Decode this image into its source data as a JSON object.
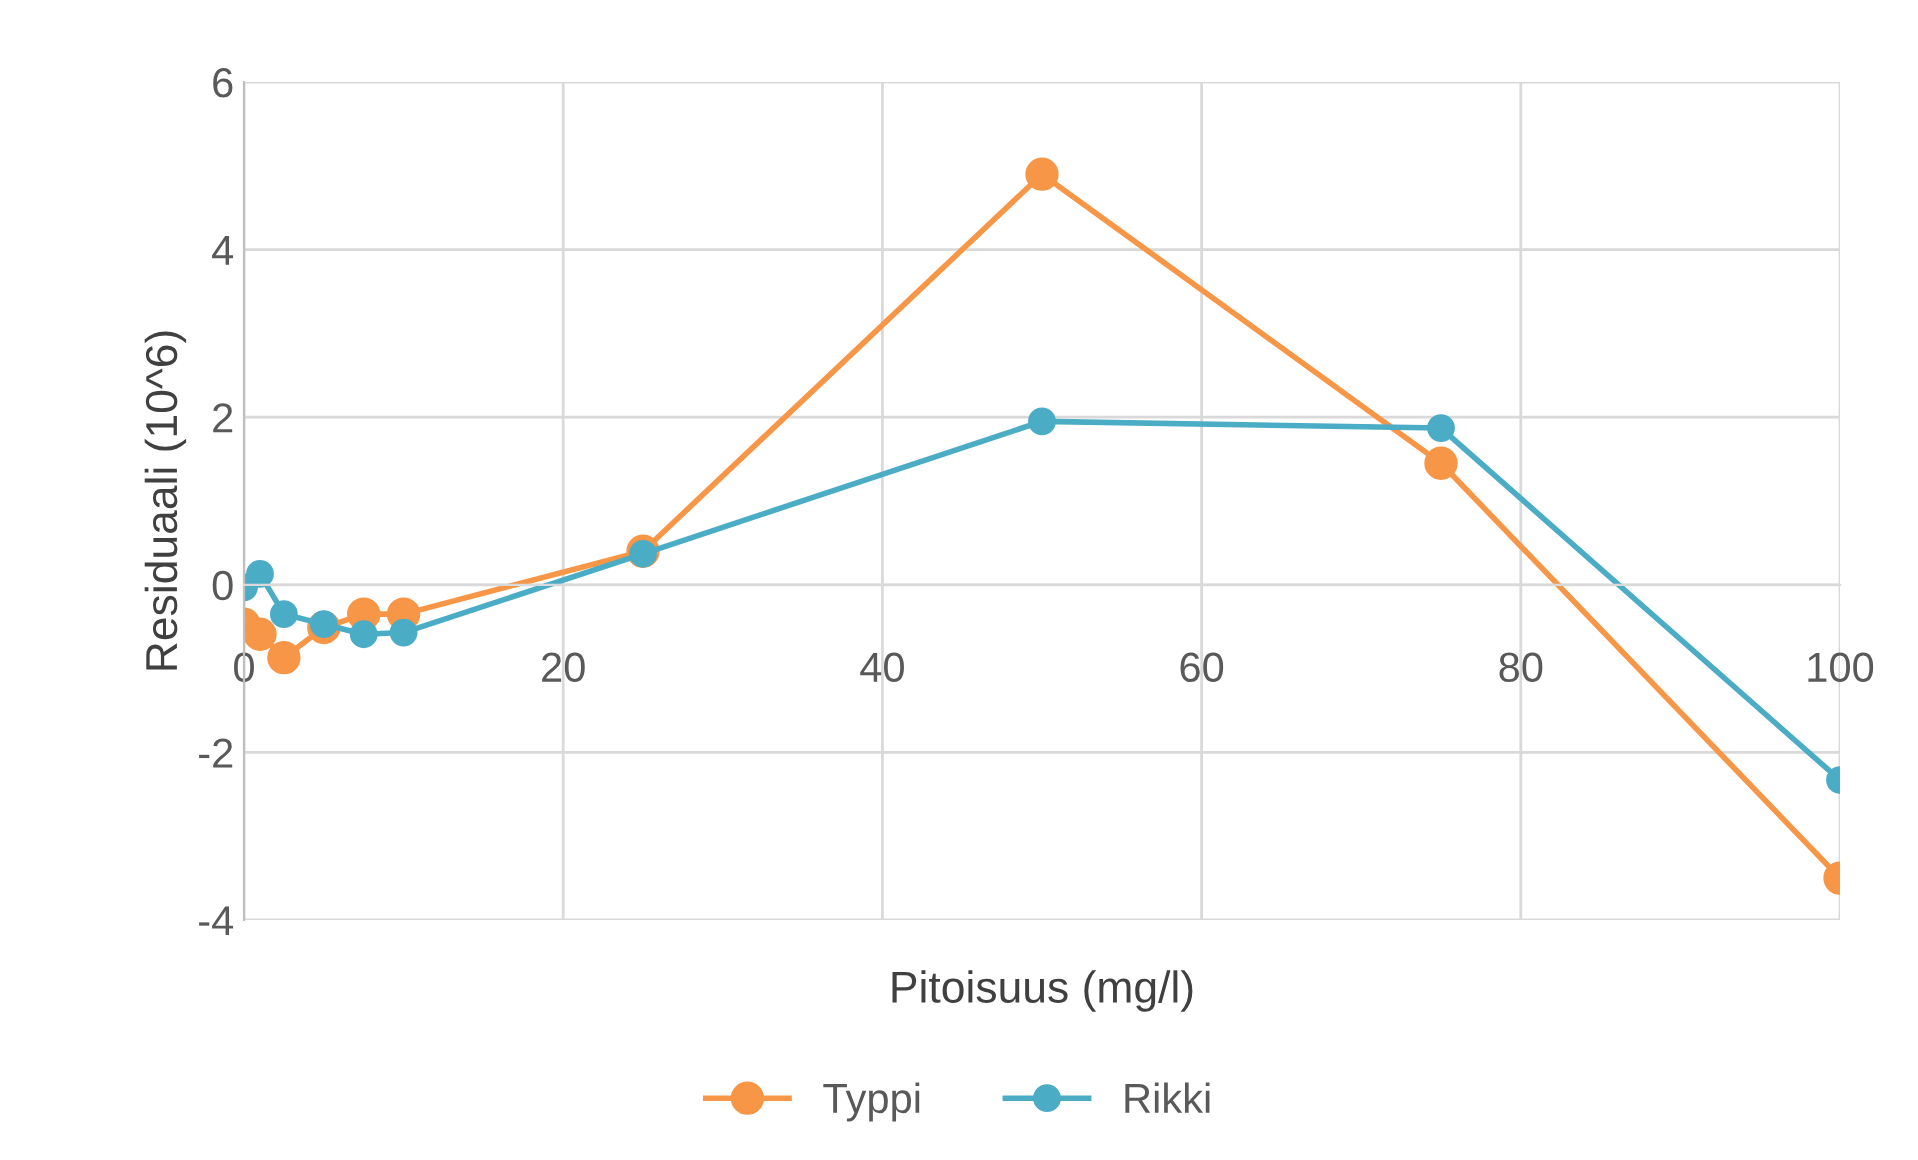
{
  "chart_data": {
    "type": "line",
    "xlabel": "Pitoisuus (mg/l)",
    "ylabel": "Residuaali (10^6)",
    "x": [
      0,
      1,
      2.5,
      5,
      7.5,
      10,
      25,
      50,
      75,
      100
    ],
    "series": [
      {
        "name": "Typpi",
        "color": "#f79646",
        "values": [
          -0.47,
          -0.59,
          -0.87,
          -0.51,
          -0.35,
          -0.35,
          0.4,
          4.9,
          1.45,
          -3.5
        ]
      },
      {
        "name": "Rikki",
        "color": "#4bacc6",
        "values": [
          -0.03,
          0.13,
          -0.35,
          -0.47,
          -0.59,
          -0.57,
          0.37,
          1.95,
          1.87,
          -2.33
        ]
      }
    ],
    "xlim": [
      0,
      100
    ],
    "xticks": [
      0,
      20,
      40,
      60,
      80,
      100
    ],
    "ylim": [
      -4,
      6
    ],
    "yticks": [
      -4,
      -2,
      0,
      2,
      4,
      6
    ],
    "grid": true,
    "legend": "bottom",
    "marker": "circle",
    "line_style": "solid"
  }
}
